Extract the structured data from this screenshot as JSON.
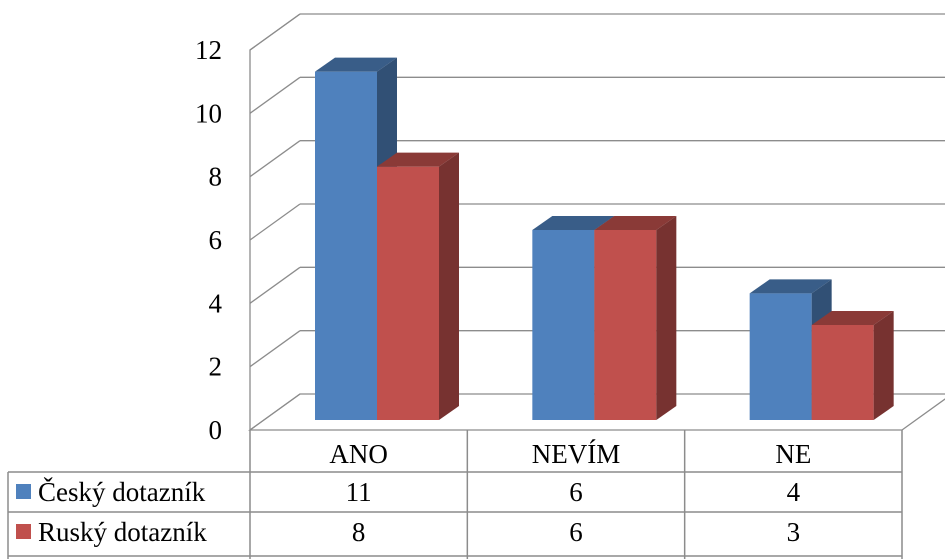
{
  "chart_data": {
    "type": "bar",
    "categories": [
      "ANO",
      "NEVÍM",
      "NE"
    ],
    "series": [
      {
        "name": "Český dotazník",
        "values": [
          11,
          6,
          4
        ],
        "color": "#4F81BD"
      },
      {
        "name": "Ruský dotazník",
        "values": [
          8,
          6,
          3
        ],
        "color": "#C0504D"
      }
    ],
    "ylim": [
      0,
      12
    ],
    "yticks": [
      "0",
      "2",
      "4",
      "6",
      "8",
      "10",
      "12"
    ],
    "grid": true,
    "legend": "data-table"
  },
  "table": {
    "rows": [
      {
        "label": "Český dotazník",
        "cells": [
          "11",
          "6",
          "4"
        ]
      },
      {
        "label": "Ruský dotazník",
        "cells": [
          "8",
          "6",
          "3"
        ]
      }
    ]
  }
}
